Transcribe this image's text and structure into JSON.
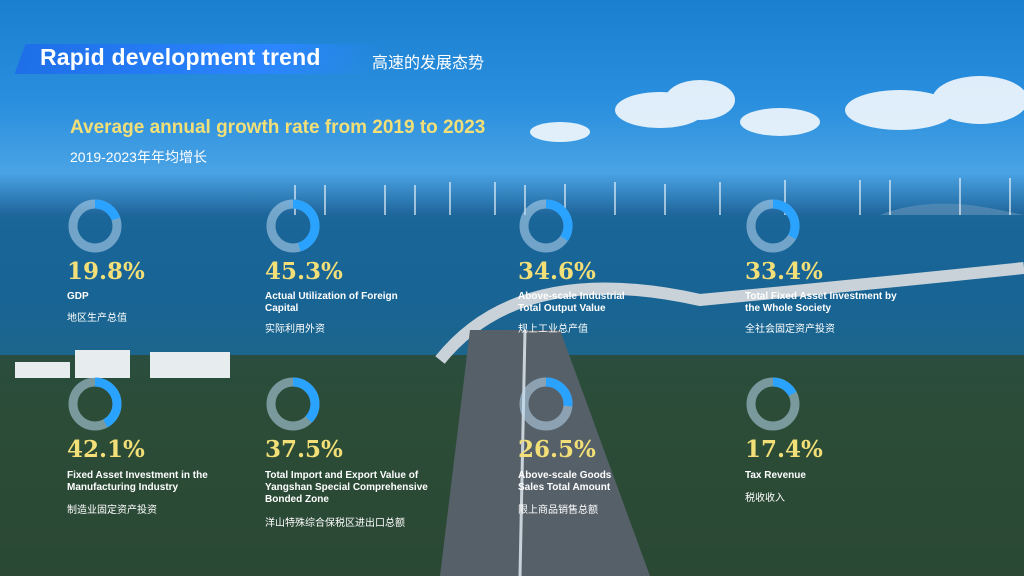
{
  "header": {
    "title_en": "Rapid development trend",
    "title_zh": "高速的发展态势"
  },
  "section": {
    "title_en": "Average annual growth rate from 2019 to 2023",
    "title_zh": "2019-2023年年均增长"
  },
  "colors": {
    "accent_blue": "#2b86ff",
    "value_yellow": "#f3df77",
    "ring_track": "#b9d8f0",
    "ring_fill": "#29a3ff"
  },
  "stats": [
    {
      "value": "19.8%",
      "label_en": "GDP",
      "label_zh": "地区生产总值",
      "fraction": 0.198
    },
    {
      "value": "45.3%",
      "label_en": "Actual Utilization of Foreign Capital",
      "label_zh": "实际利用外资",
      "fraction": 0.453
    },
    {
      "value": "34.6%",
      "label_en": "Above-scale Industrial Total Output Value",
      "label_zh": "规上工业总产值",
      "fraction": 0.346
    },
    {
      "value": "33.4%",
      "label_en": "Total Fixed Asset Investment by the Whole Society",
      "label_zh": "全社会固定资产投资",
      "fraction": 0.334
    },
    {
      "value": "42.1%",
      "label_en": "Fixed Asset Investment in the Manufacturing Industry",
      "label_zh": "制造业固定资产投资",
      "fraction": 0.421
    },
    {
      "value": "37.5%",
      "label_en": "Total Import and Export Value of Yangshan Special Comprehensive Bonded Zone",
      "label_zh": "洋山特殊综合保税区进出口总额",
      "fraction": 0.375
    },
    {
      "value": "26.5%",
      "label_en": "Above-scale Goods Sales Total Amount",
      "label_zh": "限上商品销售总额",
      "fraction": 0.265
    },
    {
      "value": "17.4%",
      "label_en": "Tax Revenue",
      "label_zh": "税收收入",
      "fraction": 0.174
    }
  ]
}
